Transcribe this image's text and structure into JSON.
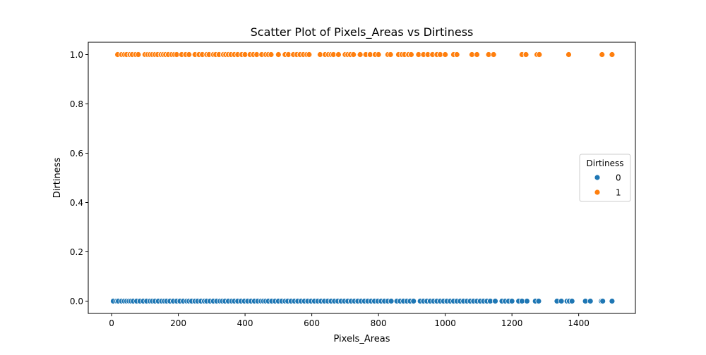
{
  "chart_data": {
    "type": "scatter",
    "title": "Scatter Plot of Pixels_Areas vs Dirtiness",
    "xlabel": "Pixels_Areas",
    "ylabel": "Dirtiness",
    "xlim": [
      -70,
      1570
    ],
    "ylim": [
      -0.05,
      1.05
    ],
    "x_ticks": [
      0,
      200,
      400,
      600,
      800,
      1000,
      1200,
      1400
    ],
    "y_ticks": [
      0.0,
      0.2,
      0.4,
      0.6,
      0.8,
      1.0
    ],
    "x_tick_labels": [
      "0",
      "200",
      "400",
      "600",
      "800",
      "1000",
      "1200",
      "1400"
    ],
    "y_tick_labels": [
      "0.0",
      "0.2",
      "0.4",
      "0.6",
      "0.8",
      "1.0"
    ],
    "grid": false,
    "legend": {
      "title": "Dirtiness",
      "placement": "center-right",
      "entries": [
        "0",
        "1"
      ]
    },
    "series": [
      {
        "name": "0",
        "color": "#1f77b4",
        "y_value": 0,
        "x": [
          5,
          15,
          20,
          30,
          38,
          45,
          52,
          58,
          65,
          75,
          85,
          95,
          105,
          115,
          122,
          130,
          140,
          150,
          158,
          165,
          175,
          185,
          195,
          205,
          215,
          225,
          232,
          240,
          250,
          258,
          268,
          278,
          285,
          295,
          305,
          315,
          325,
          332,
          340,
          350,
          360,
          368,
          378,
          388,
          398,
          408,
          418,
          428,
          438,
          448,
          455,
          462,
          470,
          480,
          490,
          500,
          510,
          520,
          528,
          538,
          548,
          558,
          568,
          578,
          588,
          598,
          608,
          618,
          628,
          638,
          648,
          658,
          668,
          678,
          688,
          698,
          708,
          718,
          728,
          738,
          748,
          758,
          768,
          778,
          788,
          798,
          808,
          818,
          828,
          838,
          855,
          865,
          875,
          885,
          895,
          905,
          925,
          935,
          945,
          955,
          965,
          975,
          985,
          995,
          1005,
          1015,
          1025,
          1035,
          1045,
          1055,
          1065,
          1075,
          1085,
          1095,
          1105,
          1115,
          1125,
          1135,
          1150,
          1170,
          1180,
          1190,
          1200,
          1220,
          1230,
          1245,
          1270,
          1280,
          1335,
          1348,
          1365,
          1372,
          1380,
          1420,
          1435,
          1468,
          1472,
          1500
        ]
      },
      {
        "name": "1",
        "color": "#ff7f0e",
        "y_value": 1,
        "x": [
          18,
          30,
          38,
          45,
          55,
          62,
          72,
          80,
          100,
          108,
          115,
          122,
          130,
          138,
          148,
          155,
          162,
          170,
          180,
          188,
          195,
          210,
          222,
          232,
          250,
          262,
          272,
          285,
          292,
          305,
          312,
          322,
          335,
          342,
          350,
          358,
          368,
          378,
          390,
          400,
          415,
          425,
          435,
          450,
          462,
          470,
          478,
          500,
          520,
          530,
          545,
          555,
          565,
          575,
          585,
          592,
          625,
          640,
          650,
          658,
          665,
          680,
          700,
          708,
          716,
          725,
          745,
          762,
          775,
          790,
          800,
          828,
          836,
          860,
          870,
          878,
          890,
          898,
          920,
          935,
          948,
          962,
          975,
          985,
          1000,
          1025,
          1035,
          1080,
          1095,
          1130,
          1145,
          1230,
          1242,
          1275,
          1282,
          1370,
          1470,
          1500
        ]
      }
    ]
  }
}
